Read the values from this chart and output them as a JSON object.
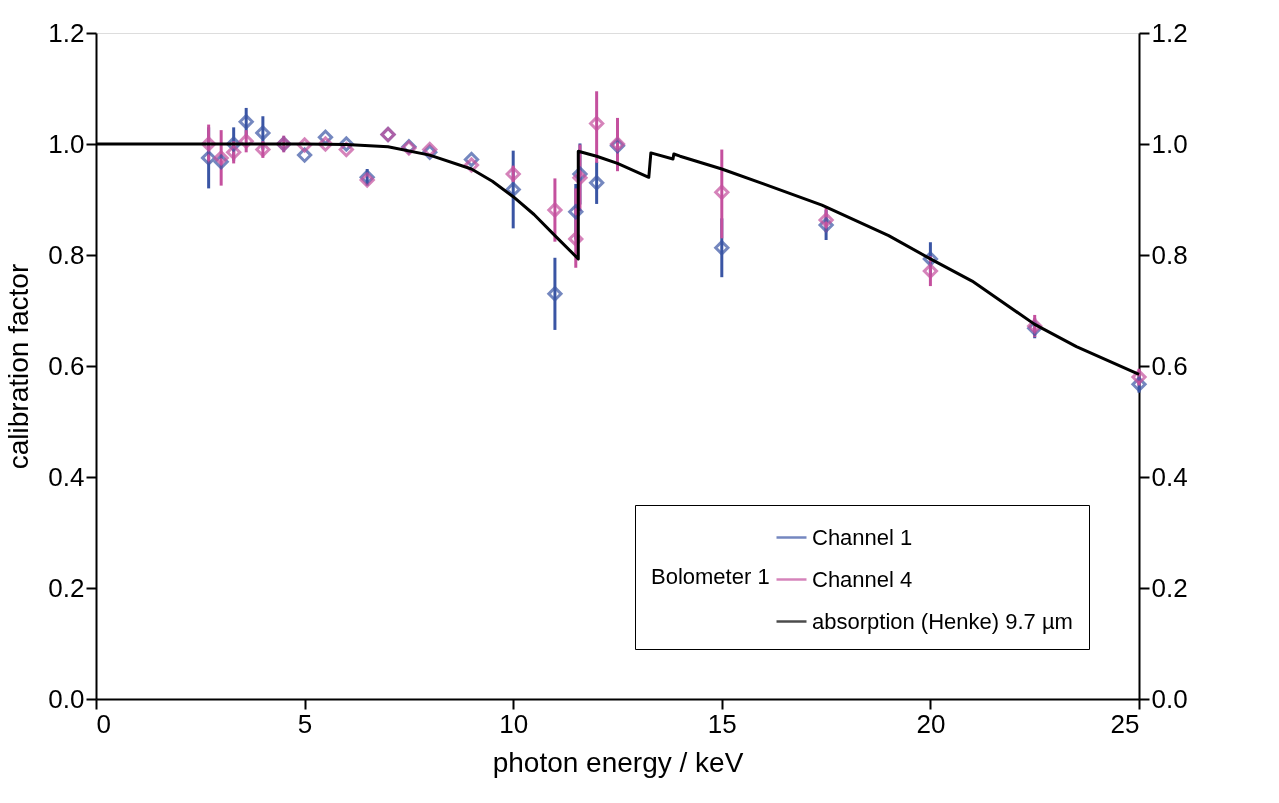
{
  "chart_data": {
    "type": "scatter",
    "xlabel": "photon energy / keV",
    "ylabel": "calibration factor",
    "legend_title": "Bolometer 1",
    "legend": "bottom right",
    "grid": false,
    "xlim": [
      0,
      25
    ],
    "xticks": [
      0,
      5,
      10,
      15,
      20,
      25
    ],
    "ylim": [
      0,
      1.2
    ],
    "yticks": [
      {
        "value": 0,
        "label": "0.0"
      },
      {
        "value": 0.2,
        "label": "0.2"
      },
      {
        "value": 0.4,
        "label": "0.4"
      },
      {
        "value": 0.6,
        "label": "0.6"
      },
      {
        "value": 0.8,
        "label": "0.8"
      },
      {
        "value": 1,
        "label": "1.0"
      },
      {
        "value": 1.2,
        "label": "1.2"
      }
    ],
    "y2lim": [
      0,
      1.2
    ],
    "y2ticks": [
      {
        "value": 0,
        "label": "0.0"
      },
      {
        "value": 0.2,
        "label": "0.2"
      },
      {
        "value": 0.4,
        "label": "0.4"
      },
      {
        "value": 0.6,
        "label": "0.6"
      },
      {
        "value": 0.8,
        "label": "0.8"
      },
      {
        "value": 1,
        "label": "1.0"
      },
      {
        "value": 1.2,
        "label": "1.2"
      }
    ],
    "series": [
      {
        "name": "Channel 1",
        "color": "#3a55a4",
        "marker": "diamond",
        "x": [
          2.7,
          3.0,
          3.3,
          3.6,
          4.0,
          4.5,
          5.0,
          5.5,
          6.0,
          6.5,
          7.0,
          7.5,
          8.0,
          9.0,
          10.0,
          11.0,
          11.5,
          11.6,
          12.0,
          12.5,
          15.0,
          17.5,
          20.0,
          22.5,
          25.0
        ],
        "values": [
          0.975,
          0.968,
          1.0,
          1.04,
          1.02,
          1.0,
          0.98,
          1.012,
          1.0,
          0.94,
          1.017,
          0.995,
          0.985,
          0.972,
          0.918,
          0.73,
          0.878,
          0.946,
          0.93,
          0.997,
          0.813,
          0.854,
          0.793,
          0.668,
          0.567
        ],
        "errors": [
          0.055,
          null,
          0.03,
          0.025,
          0.03,
          null,
          null,
          null,
          null,
          0.015,
          null,
          null,
          null,
          null,
          0.07,
          0.065,
          0.05,
          0.055,
          0.038,
          null,
          0.053,
          0.027,
          0.03,
          0.018,
          0.015
        ]
      },
      {
        "name": "Channel 4",
        "color": "#c4509e",
        "marker": "diamond",
        "x": [
          2.7,
          3.0,
          3.3,
          3.6,
          4.0,
          4.5,
          5.0,
          5.5,
          6.0,
          6.5,
          7.0,
          7.5,
          8.0,
          9.0,
          10.0,
          11.0,
          11.5,
          11.6,
          12.0,
          12.5,
          15.0,
          17.5,
          20.0,
          22.5,
          25.0
        ],
        "values": [
          1.0,
          0.975,
          0.985,
          1.005,
          0.99,
          1.0,
          0.998,
          1.0,
          0.99,
          0.935,
          1.017,
          0.993,
          0.99,
          0.962,
          0.946,
          0.881,
          0.829,
          0.939,
          1.037,
          1.0,
          0.913,
          0.863,
          0.771,
          0.672,
          0.58
        ],
        "errors": [
          0.035,
          0.05,
          0.02,
          0.02,
          0.015,
          0.015,
          null,
          null,
          null,
          null,
          null,
          null,
          null,
          null,
          0.015,
          0.057,
          [
            0.777,
            0.92
          ],
          0.06,
          [
            0.966,
            1.095
          ],
          [
            0.951,
            1.047
          ],
          [
            0.83,
            0.99
          ],
          0.022,
          0.027,
          0.02,
          0.015
        ]
      },
      {
        "name": "absorption (Henke) 9.7 µm",
        "color": "#000000",
        "type": "line",
        "line_style": "solid",
        "marker": "none",
        "x": [
          0,
          3,
          5,
          6,
          7,
          8,
          9,
          9.5,
          10,
          10.5,
          11,
          11.56,
          11.56,
          12,
          12.5,
          13.25,
          13.3,
          13.83,
          13.85,
          14,
          15,
          16,
          17.4,
          19,
          20,
          21,
          22.5,
          23.5,
          25
        ],
        "values": [
          1.0,
          1.0,
          1.0,
          0.999,
          0.995,
          0.98,
          0.955,
          0.933,
          0.905,
          0.873,
          0.835,
          0.793,
          0.987,
          0.978,
          0.965,
          0.94,
          0.984,
          0.973,
          0.982,
          0.978,
          0.955,
          0.928,
          0.89,
          0.835,
          0.793,
          0.753,
          0.675,
          0.635,
          0.585
        ]
      }
    ]
  }
}
